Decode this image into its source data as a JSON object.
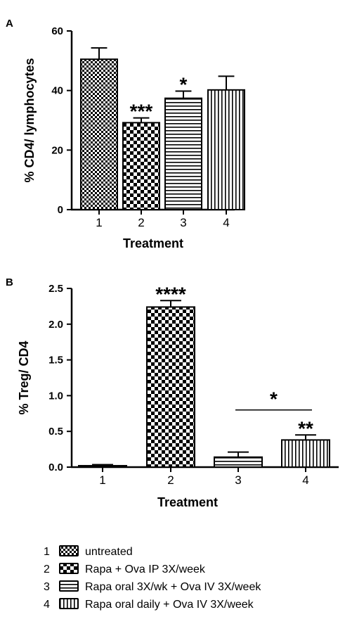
{
  "chart_data": [
    {
      "panel": "A",
      "type": "bar",
      "categories": [
        "1",
        "2",
        "3",
        "4"
      ],
      "values": [
        50.5,
        29.2,
        37.4,
        40.2
      ],
      "errors": [
        3.8,
        1.6,
        2.4,
        4.6
      ],
      "significance": [
        "",
        "***",
        "*",
        ""
      ],
      "fills": [
        "pattern-fine-check",
        "pattern-check",
        "pattern-hstripe",
        "pattern-vstripe"
      ],
      "xlabel": "Treatment",
      "ylabel": "% CD4/ lymphocytes",
      "ylim": [
        0,
        60
      ],
      "yticks": [
        "0",
        "20",
        "40",
        "60"
      ]
    },
    {
      "panel": "B",
      "type": "bar",
      "categories": [
        "1",
        "2",
        "3",
        "4"
      ],
      "values": [
        0.02,
        2.24,
        0.14,
        0.38
      ],
      "errors": [
        0.015,
        0.09,
        0.07,
        0.07
      ],
      "significance": [
        "",
        "****",
        "",
        "**"
      ],
      "bracket": {
        "from": "3",
        "to": "4",
        "label": "*"
      },
      "fills": [
        "pattern-fine-check",
        "pattern-check",
        "pattern-hstripe",
        "pattern-vstripe"
      ],
      "xlabel": "Treatment",
      "ylabel": "% Treg/ CD4",
      "ylim": [
        0,
        2.5
      ],
      "yticks": [
        "0.0",
        "0.5",
        "1.0",
        "1.5",
        "2.0",
        "2.5"
      ]
    }
  ],
  "legend": [
    {
      "num": "1",
      "label": "untreated",
      "fill": "pattern-fine-check"
    },
    {
      "num": "2",
      "label": "Rapa + Ova IP 3X/week",
      "fill": "pattern-check"
    },
    {
      "num": "3",
      "label": "Rapa oral 3X/wk + Ova IV 3X/week",
      "fill": "pattern-hstripe"
    },
    {
      "num": "4",
      "label": "Rapa oral daily + Ova IV 3X/week",
      "fill": "pattern-vstripe"
    }
  ]
}
